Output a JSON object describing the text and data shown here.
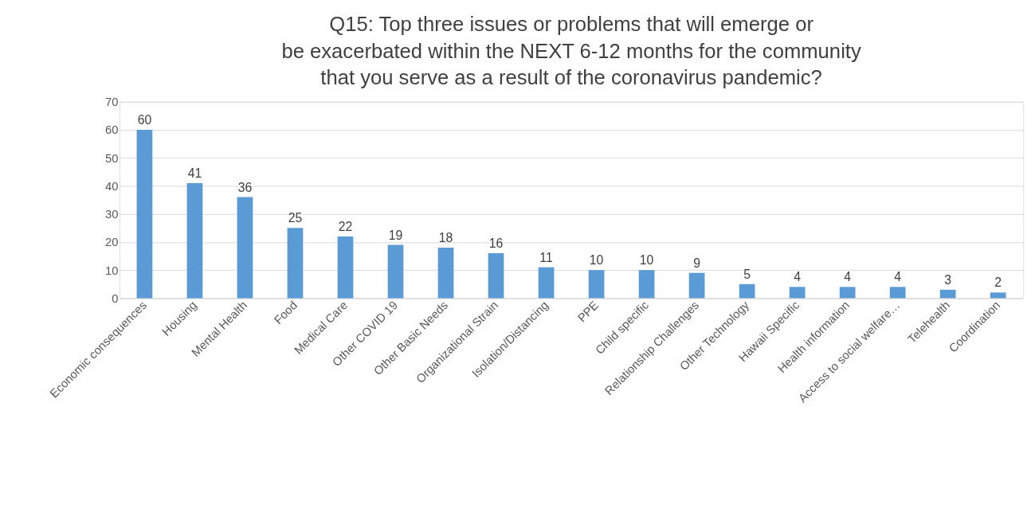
{
  "chart_data": {
    "type": "bar",
    "title": "Q15: Top three issues or problems that will emerge or\nbe exacerbated within the NEXT 6-12 months for the community\nthat you serve as a result of the coronavirus pandemic?",
    "categories": [
      "Economic consequences",
      "Housing",
      "Mental Health",
      "Food",
      "Medical Care",
      "Other COVID 19",
      "Other Basic Needs",
      "Organizational Strain",
      "Isolation/Distancing",
      "PPE",
      "Child specific",
      "Relationship Challenges",
      "Other Technology",
      "Hawaii Specific",
      "Health information",
      "Access to social welfare…",
      "Telehealth",
      "Coordination"
    ],
    "values": [
      60,
      41,
      36,
      25,
      22,
      19,
      18,
      16,
      11,
      10,
      10,
      9,
      5,
      4,
      4,
      4,
      3,
      2
    ],
    "color": "#5b9bd5",
    "ylim": [
      0,
      70
    ],
    "yticks": [
      0,
      10,
      20,
      30,
      40,
      50,
      60,
      70
    ],
    "grid": "y",
    "data_labels": true
  }
}
